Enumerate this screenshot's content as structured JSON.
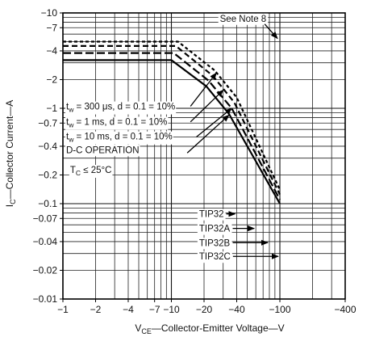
{
  "chart_data": {
    "type": "line",
    "scale": {
      "x": "log",
      "y": "log"
    },
    "xlabel": "V_CE—Collector-Emitter Voltage—V",
    "ylabel": "I_C—Collector Current—A",
    "xlim": [
      -1,
      -400
    ],
    "ylim": [
      -0.01,
      -10
    ],
    "x_ticks": [
      {
        "value": -1,
        "label": "−1"
      },
      {
        "value": -2,
        "label": "−2"
      },
      {
        "value": -4,
        "label": "−4"
      },
      {
        "value": -7,
        "label": "−7"
      },
      {
        "value": -10,
        "label": "−10"
      },
      {
        "value": -20,
        "label": "−20"
      },
      {
        "value": -40,
        "label": "−40"
      },
      {
        "value": -100,
        "label": "−100"
      },
      {
        "value": -400,
        "label": "−400"
      }
    ],
    "y_ticks": [
      {
        "value": -10,
        "label": "−10"
      },
      {
        "value": -7,
        "label": "−7"
      },
      {
        "value": -4,
        "label": "−4"
      },
      {
        "value": -2,
        "label": "−2"
      },
      {
        "value": -1,
        "label": "−1"
      },
      {
        "value": -0.7,
        "label": "−0.7"
      },
      {
        "value": -0.4,
        "label": "−0.4"
      },
      {
        "value": -0.2,
        "label": "−0.2"
      },
      {
        "value": -0.1,
        "label": "−0.1"
      },
      {
        "value": -0.07,
        "label": "−0.07"
      },
      {
        "value": -0.04,
        "label": "−0.04"
      },
      {
        "value": -0.02,
        "label": "−0.02"
      },
      {
        "value": -0.01,
        "label": "−0.01"
      }
    ],
    "grid": true,
    "series": [
      {
        "name": "t_w = 300 μs, d = 0.1 = 10%",
        "dash": "4,3",
        "points": [
          [
            -1,
            -5
          ],
          [
            -11.5,
            -5
          ],
          [
            -25,
            -2.5
          ],
          [
            -40,
            -1.3
          ],
          [
            -100,
            -0.14
          ]
        ]
      },
      {
        "name": "t_w = 1 ms, d = 0.1 = 10%",
        "dash": "7,4",
        "points": [
          [
            -1,
            -4.5
          ],
          [
            -11,
            -4.5
          ],
          [
            -24,
            -2.2
          ],
          [
            -38,
            -1.15
          ],
          [
            -100,
            -0.125
          ]
        ]
      },
      {
        "name": "t_w = 10 ms, d = 0.1 = 10%",
        "dash": "10,4",
        "points": [
          [
            -1,
            -3.8
          ],
          [
            -10.5,
            -3.8
          ],
          [
            -22,
            -1.95
          ],
          [
            -36,
            -1.0
          ],
          [
            -100,
            -0.11
          ]
        ]
      },
      {
        "name": "D-C OPERATION",
        "dash": "",
        "points": [
          [
            -1,
            -3.2
          ],
          [
            -10,
            -3.2
          ],
          [
            -21,
            -1.7
          ],
          [
            -34,
            -0.87
          ],
          [
            -100,
            -0.1
          ]
        ]
      }
    ],
    "curve_labels": [
      {
        "text": "t_w = 300 μs, d = 0.1 = 10%",
        "sub": "W",
        "x": -1,
        "y": -0.97
      },
      {
        "text": "t_w = 1 ms, d = 0.1 = 10%",
        "sub": "W",
        "x": -1,
        "y": -0.67
      },
      {
        "text": "t_w = 10 ms, d = 0.1 = 10%",
        "sub": "W",
        "x": -1,
        "y": -0.47
      },
      {
        "text": "D-C OPERATION",
        "x": -1,
        "y": -0.34
      }
    ],
    "curve_pointers": [
      {
        "from": [
          -15,
          -1.05
        ],
        "to": [
          -26,
          -2.35
        ]
      },
      {
        "from": [
          -15,
          -0.72
        ],
        "to": [
          -30,
          -1.55
        ]
      },
      {
        "from": [
          -17,
          -0.5
        ],
        "to": [
          -36,
          -1.0
        ]
      },
      {
        "from": [
          -14,
          -0.34
        ],
        "to": [
          -34,
          -0.85
        ]
      }
    ],
    "note": {
      "text": "See Note 8",
      "x": -28,
      "y": -8.1,
      "arrow_to": [
        -100,
        -5.4
      ]
    },
    "tc_label": {
      "prefix": "T",
      "sub": "C",
      "rest": " ≤ 25°C",
      "x": -1.05,
      "y": -0.21
    },
    "vceo_labels": [
      {
        "name": "TIP32",
        "x": -18,
        "y": -0.078,
        "arrow_to": -40
      },
      {
        "name": "TIP32A",
        "x": -18,
        "y": -0.055,
        "arrow_to": -60
      },
      {
        "name": "TIP32B",
        "x": -18,
        "y": -0.039,
        "arrow_to": -80
      },
      {
        "name": "TIP32C",
        "x": -18,
        "y": -0.028,
        "arrow_to": -100
      }
    ]
  }
}
